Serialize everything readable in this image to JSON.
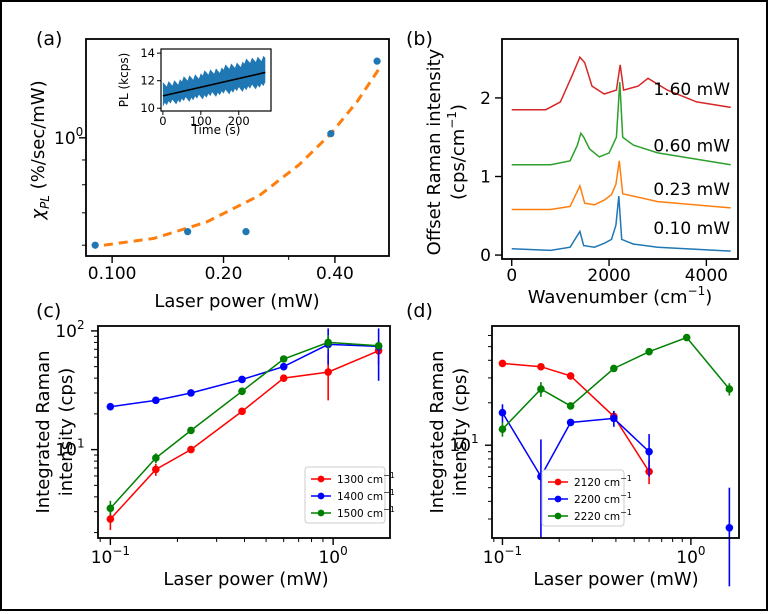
{
  "figure": {
    "panels": [
      {
        "id": "a",
        "letter": "(a)"
      },
      {
        "id": "b",
        "letter": "(b)"
      },
      {
        "id": "c",
        "letter": "(c)"
      },
      {
        "id": "d",
        "letter": "(d)"
      }
    ]
  },
  "chart_data": [
    {
      "panel": "a",
      "type": "scatter",
      "scale": {
        "x": "log",
        "y": "log"
      },
      "xlabel": "Laser power (mW)",
      "ylabel": "χ_PL (%/sec/mW)",
      "ylabel_parts": {
        "symbol": "χ",
        "sub": "PL",
        "rest": " (%/sec/mW)"
      },
      "xlim": [
        0.085,
        0.56
      ],
      "ylim": [
        0.57,
        1.6
      ],
      "x_ticks": [
        {
          "v": 0.1,
          "label": "0.100"
        },
        {
          "v": 0.2,
          "label": "0.20"
        },
        {
          "v": 0.4,
          "label": "0.40"
        }
      ],
      "x_minor": [
        0.3
      ],
      "y_ticks": [
        {
          "v": 1.0,
          "label": "10",
          "sup": "0"
        }
      ],
      "y_minor": [
        0.6,
        0.7,
        0.8,
        0.9
      ],
      "marker_color": "#1f77b4",
      "fit_color": "#ff7f0e",
      "points": [
        {
          "x": 0.09,
          "y": 0.6
        },
        {
          "x": 0.16,
          "y": 0.64
        },
        {
          "x": 0.23,
          "y": 0.64
        },
        {
          "x": 0.39,
          "y": 1.02
        },
        {
          "x": 0.52,
          "y": 1.44
        }
      ],
      "fit": [
        {
          "x": 0.095,
          "y": 0.6
        },
        {
          "x": 0.13,
          "y": 0.62
        },
        {
          "x": 0.18,
          "y": 0.67
        },
        {
          "x": 0.25,
          "y": 0.76
        },
        {
          "x": 0.32,
          "y": 0.88
        },
        {
          "x": 0.39,
          "y": 1.02
        },
        {
          "x": 0.46,
          "y": 1.19
        },
        {
          "x": 0.53,
          "y": 1.4
        }
      ],
      "inset": {
        "type": "line",
        "xlabel": "Time (s)",
        "ylabel": "PL (kcps)",
        "xlim": [
          -5,
          285
        ],
        "ylim": [
          9.8,
          14.3
        ],
        "x_ticks": [
          0,
          100,
          200
        ],
        "y_ticks": [
          10,
          12,
          14
        ],
        "noise_color": "#1f77b4",
        "fit_color": "#000000",
        "fit": [
          {
            "x": 0,
            "y": 10.9
          },
          {
            "x": 270,
            "y": 12.6
          }
        ],
        "band_top": [
          {
            "x": 0,
            "y": 11.9
          },
          {
            "x": 270,
            "y": 14.0
          }
        ],
        "band_bottom": [
          {
            "x": 0,
            "y": 10.1
          },
          {
            "x": 270,
            "y": 11.5
          }
        ]
      }
    },
    {
      "panel": "b",
      "type": "line",
      "xlabel": "Wavenumber (cm⁻¹)",
      "xlabel_parts": {
        "text": "Wavenumber (cm",
        "sup": "−1",
        "close": ")"
      },
      "ylabel_lines": [
        "Offset Raman intensity",
        "(cps/cm⁻¹)"
      ],
      "ylabel_parts": {
        "line1": "Offset Raman intensity",
        "line2_text": "(cps/cm",
        "line2_sup": "−1",
        "line2_close": ")"
      },
      "xlim": [
        -200,
        4650
      ],
      "ylim": [
        -0.05,
        2.75
      ],
      "x_ticks": [
        0,
        2000,
        4000
      ],
      "y_ticks": [
        0,
        1,
        2
      ],
      "series": [
        {
          "label": "0.10 mW",
          "color": "#1f77b4",
          "offset": 0.1,
          "points": [
            [
              0,
              0.08
            ],
            [
              800,
              0.06
            ],
            [
              1200,
              0.1
            ],
            [
              1400,
              0.3
            ],
            [
              1480,
              0.12
            ],
            [
              1700,
              0.1
            ],
            [
              1900,
              0.15
            ],
            [
              2050,
              0.2
            ],
            [
              2140,
              0.38
            ],
            [
              2200,
              0.75
            ],
            [
              2260,
              0.2
            ],
            [
              2500,
              0.14
            ],
            [
              3000,
              0.1
            ],
            [
              4500,
              0.05
            ]
          ]
        },
        {
          "label": "0.23 mW",
          "color": "#ff7f0e",
          "offset": 0.6,
          "points": [
            [
              0,
              0.58
            ],
            [
              800,
              0.58
            ],
            [
              1200,
              0.62
            ],
            [
              1400,
              0.88
            ],
            [
              1500,
              0.66
            ],
            [
              1700,
              0.64
            ],
            [
              1900,
              0.7
            ],
            [
              2050,
              0.77
            ],
            [
              2140,
              0.9
            ],
            [
              2210,
              1.2
            ],
            [
              2280,
              0.78
            ],
            [
              2500,
              0.75
            ],
            [
              3000,
              0.68
            ],
            [
              4500,
              0.6
            ]
          ]
        },
        {
          "label": "0.60 mW",
          "color": "#2ca02c",
          "offset": 1.15,
          "points": [
            [
              0,
              1.15
            ],
            [
              800,
              1.15
            ],
            [
              1200,
              1.2
            ],
            [
              1350,
              1.4
            ],
            [
              1420,
              1.55
            ],
            [
              1480,
              1.5
            ],
            [
              1600,
              1.35
            ],
            [
              1800,
              1.25
            ],
            [
              2000,
              1.3
            ],
            [
              2150,
              1.5
            ],
            [
              2220,
              2.2
            ],
            [
              2280,
              1.5
            ],
            [
              2500,
              1.4
            ],
            [
              3000,
              1.3
            ],
            [
              4500,
              1.15
            ]
          ]
        },
        {
          "label": "1.60 mW",
          "color": "#d62728",
          "offset": 1.87,
          "points": [
            [
              0,
              1.85
            ],
            [
              700,
              1.85
            ],
            [
              1000,
              1.95
            ],
            [
              1250,
              2.3
            ],
            [
              1400,
              2.52
            ],
            [
              1500,
              2.45
            ],
            [
              1650,
              2.15
            ],
            [
              1900,
              2.05
            ],
            [
              2150,
              2.1
            ],
            [
              2230,
              2.42
            ],
            [
              2300,
              2.1
            ],
            [
              2600,
              2.15
            ],
            [
              2800,
              2.25
            ],
            [
              3200,
              2.1
            ],
            [
              3800,
              1.95
            ],
            [
              4500,
              1.88
            ]
          ]
        }
      ]
    },
    {
      "panel": "c",
      "type": "line",
      "scale": {
        "x": "log",
        "y": "log"
      },
      "xlabel": "Laser power (mW)",
      "ylabel_lines": [
        "Integrated Raman",
        "intensity (cps)"
      ],
      "xlim": [
        0.088,
        1.8
      ],
      "ylim": [
        1.8,
        110
      ],
      "x_ticks": [
        {
          "v": 0.1,
          "base": "10",
          "sup": "−1"
        },
        {
          "v": 1,
          "base": "10",
          "sup": "0"
        }
      ],
      "y_ticks": [
        {
          "v": 10,
          "base": "10",
          "sup": "1"
        },
        {
          "v": 100,
          "base": "10",
          "sup": "2"
        }
      ],
      "legend_position": "lower-right",
      "series": [
        {
          "name": "1300 cm⁻¹",
          "name_parts": {
            "text": "1300 cm",
            "sup": "−1"
          },
          "color": "#ff0000",
          "points": [
            [
              0.1,
              2.6
            ],
            [
              0.16,
              6.8
            ],
            [
              0.23,
              10
            ],
            [
              0.39,
              21
            ],
            [
              0.6,
              40
            ],
            [
              0.95,
              45
            ],
            [
              1.6,
              68
            ]
          ],
          "err": [
            [
              0.1,
              2.1,
              3.1
            ],
            [
              0.16,
              6,
              7.6
            ],
            [
              0.95,
              26,
              64
            ],
            [
              1.6,
              52,
              82
            ]
          ]
        },
        {
          "name": "1400 cm⁻¹",
          "name_parts": {
            "text": "1400 cm",
            "sup": "−1"
          },
          "color": "#0000ff",
          "points": [
            [
              0.1,
              23
            ],
            [
              0.16,
              26
            ],
            [
              0.23,
              30
            ],
            [
              0.39,
              39
            ],
            [
              0.6,
              50
            ],
            [
              0.95,
              77
            ],
            [
              1.6,
              74
            ]
          ],
          "err": [
            [
              0.95,
              52,
              105
            ],
            [
              1.6,
              38,
              105
            ]
          ]
        },
        {
          "name": "1500 cm⁻¹",
          "name_parts": {
            "text": "1500 cm",
            "sup": "−1"
          },
          "color": "#008000",
          "points": [
            [
              0.1,
              3.2
            ],
            [
              0.16,
              8.5
            ],
            [
              0.23,
              14.5
            ],
            [
              0.39,
              31
            ],
            [
              0.6,
              58
            ],
            [
              0.95,
              80
            ],
            [
              1.6,
              75
            ]
          ],
          "err": [
            [
              0.1,
              2.8,
              3.7
            ],
            [
              0.16,
              7.7,
              9.3
            ],
            [
              0.95,
              70,
              92
            ]
          ]
        }
      ]
    },
    {
      "panel": "d",
      "type": "line",
      "scale": {
        "x": "log",
        "y": "log"
      },
      "xlabel": "Laser power (mW)",
      "ylabel_lines": [
        "Integrated Raman",
        "intensity (cps)"
      ],
      "xlim": [
        0.088,
        1.8
      ],
      "ylim": [
        2.2,
        70
      ],
      "x_ticks": [
        {
          "v": 0.1,
          "base": "10",
          "sup": "−1"
        },
        {
          "v": 1,
          "base": "10",
          "sup": "0"
        }
      ],
      "y_ticks": [
        {
          "v": 10,
          "base": "10",
          "sup": "1"
        }
      ],
      "legend_position": "lower-center",
      "series": [
        {
          "name": "2120 cm⁻¹",
          "name_parts": {
            "text": "2120 cm",
            "sup": "−1"
          },
          "color": "#ff0000",
          "points": [
            [
              0.1,
              38
            ],
            [
              0.16,
              36
            ],
            [
              0.23,
              31
            ],
            [
              0.39,
              16
            ],
            [
              0.6,
              6.5
            ]
          ],
          "err": [
            [
              0.39,
              14.5,
              17.5
            ],
            [
              0.6,
              5.3,
              7.8
            ]
          ]
        },
        {
          "name": "2200 cm⁻¹",
          "name_parts": {
            "text": "2200 cm",
            "sup": "−1"
          },
          "color": "#0000ff",
          "points": [
            [
              0.1,
              17
            ],
            [
              0.16,
              6
            ],
            [
              0.23,
              14.5
            ],
            [
              0.39,
              15.5
            ],
            [
              0.6,
              9
            ]
          ],
          "err": [
            [
              0.1,
              14.5,
              19.5
            ],
            [
              0.16,
              2.2,
              11
            ],
            [
              0.39,
              13.5,
              17.5
            ],
            [
              0.6,
              6,
              12
            ]
          ],
          "extra_point": {
            "x": 1.6,
            "y": 2.6,
            "err": [
              1.0,
              5.0
            ]
          }
        },
        {
          "name": "2220 cm⁻¹",
          "name_parts": {
            "text": "2220 cm",
            "sup": "−1"
          },
          "color": "#008000",
          "points": [
            [
              0.1,
              13
            ],
            [
              0.16,
              25
            ],
            [
              0.23,
              19
            ],
            [
              0.39,
              35
            ],
            [
              0.6,
              46
            ],
            [
              0.95,
              58
            ],
            [
              1.6,
              25
            ]
          ],
          "err": [
            [
              0.1,
              11.5,
              14.5
            ],
            [
              0.16,
              22,
              28
            ],
            [
              1.6,
              22.5,
              27.5
            ]
          ]
        }
      ]
    }
  ]
}
